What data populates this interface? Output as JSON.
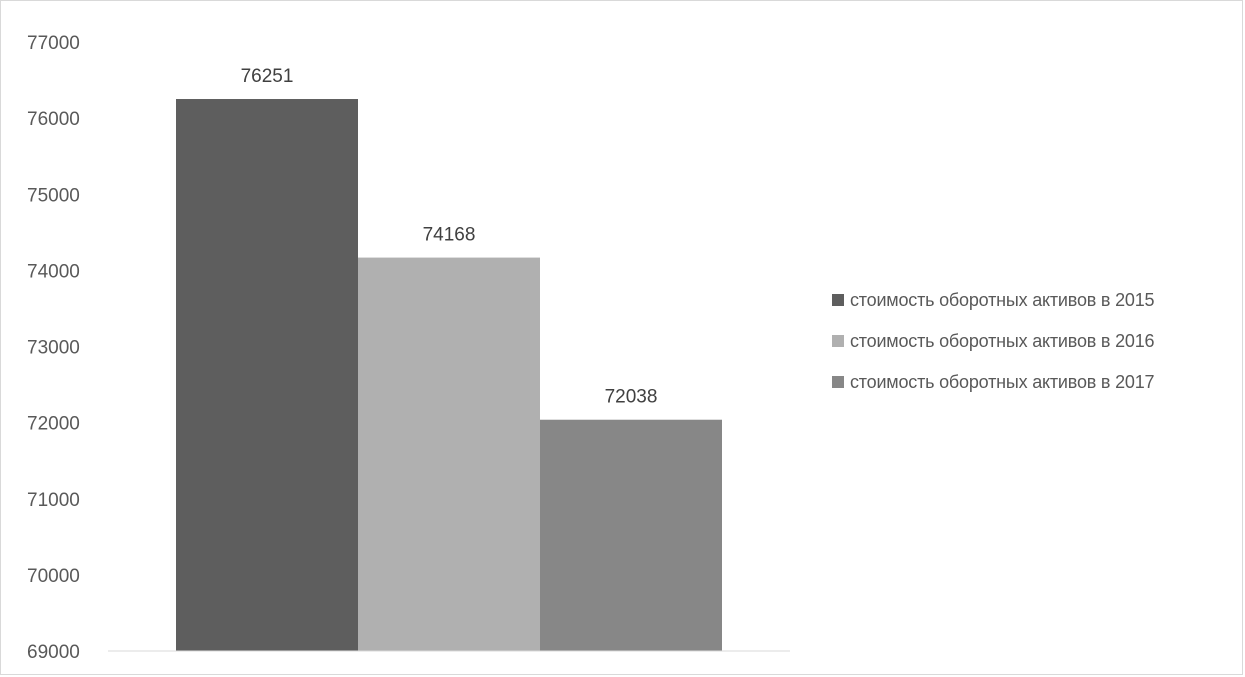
{
  "chart_data": {
    "type": "bar",
    "title": "",
    "xlabel": "",
    "ylabel": "",
    "ylim": [
      69000,
      77000
    ],
    "yticks": [
      69000,
      70000,
      71000,
      72000,
      73000,
      74000,
      75000,
      76000,
      77000
    ],
    "grid": false,
    "legend_position": "right",
    "series": [
      {
        "name": "стоимость оборотных активов в 2015",
        "values": [
          76251
        ],
        "color": "#5e5e5e"
      },
      {
        "name": "стоимость оборотных активов в 2016",
        "values": [
          74168
        ],
        "color": "#b0b0b0"
      },
      {
        "name": "стоимость оборотных активов в 2017",
        "values": [
          72038
        ],
        "color": "#878787"
      }
    ],
    "data_labels": [
      "76251",
      "74168",
      "72038"
    ]
  }
}
